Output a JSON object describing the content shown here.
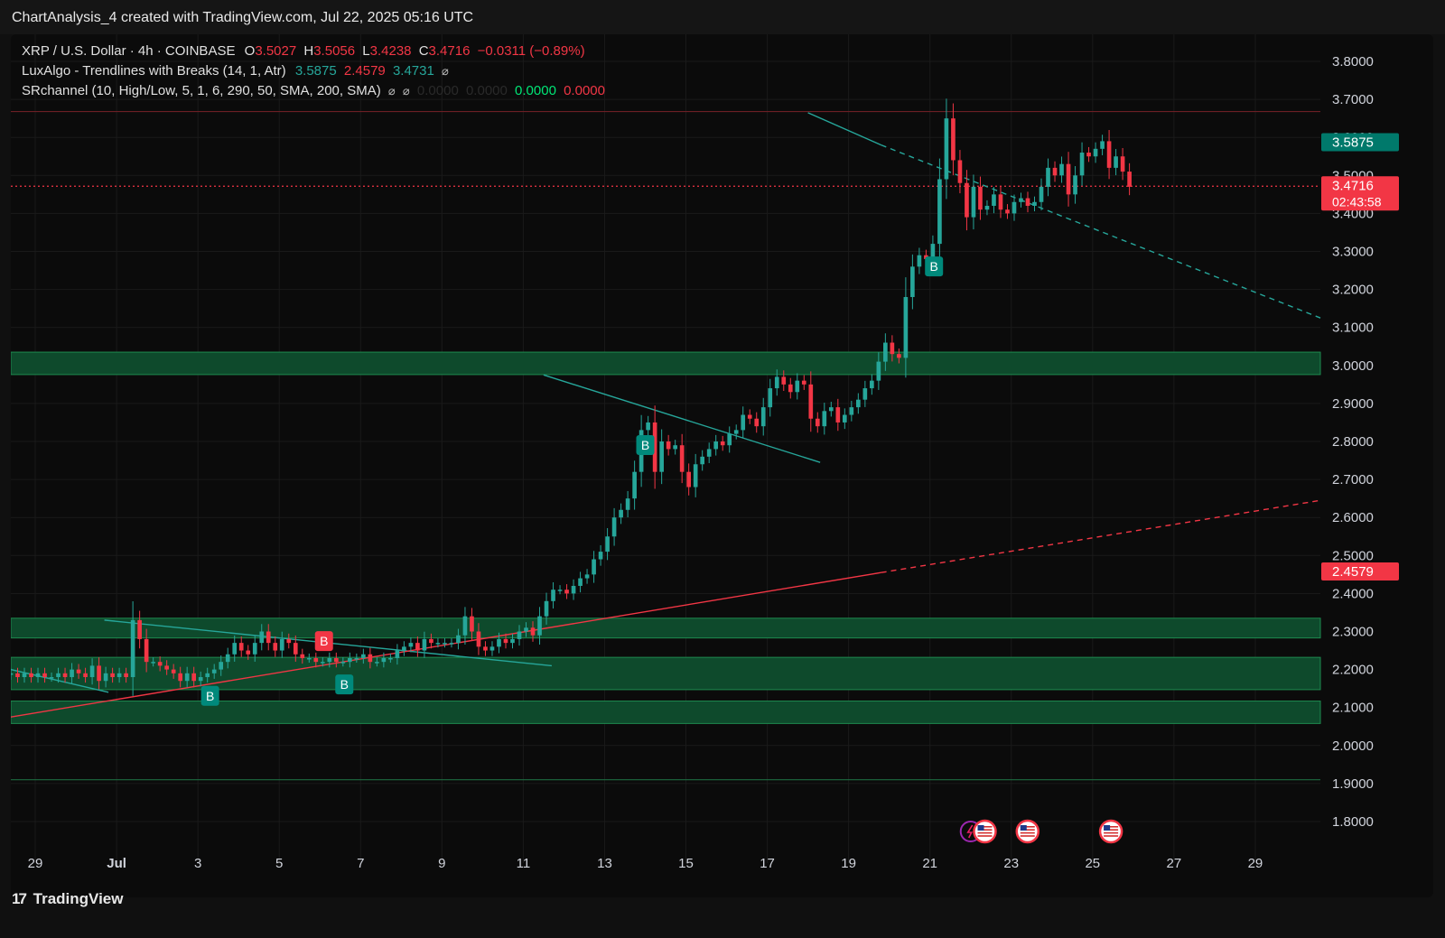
{
  "caption": "ChartAnalysis_4 created with TradingView.com, Jul 22, 2025 05:16 UTC",
  "legend": {
    "symbol": "XRP / U.S. Dollar · 4h · COINBASE",
    "o_label": "O",
    "o_value": "3.5027",
    "h_label": "H",
    "h_value": "3.5056",
    "l_label": "L",
    "l_value": "3.4238",
    "c_label": "C",
    "c_value": "3.4716",
    "change": "−0.0311 (−0.89%)",
    "lux_name": "LuxAlgo - Trendlines with Breaks (14, 1, Atr)",
    "lux_v1": "3.5875",
    "lux_v2": "2.4579",
    "lux_v3": "3.4731",
    "sr_name": "SRchannel (10, High/Low, 5, 1, 6, 290, 50, SMA, 200, SMA)",
    "sr_v1": "0.0000",
    "sr_v2": "0.0000",
    "sr_v3": "0.0000",
    "sr_v4": "0.0000",
    "na_icon": "null-set-icon"
  },
  "footer": {
    "brand": "TradingView"
  },
  "colors": {
    "up": "#26a69a",
    "down": "#f23645",
    "zone": "#0e4a2c",
    "zoneEdge": "#1e8a4f",
    "bg": "#0b0b0b"
  },
  "chart_data": {
    "type": "candlestick",
    "symbol": "XRP / U.S. Dollar",
    "timeframe": "4h",
    "ylim": [
      1.76,
      3.86
    ],
    "y_ticks": [
      "3.8000",
      "3.7000",
      "3.6000",
      "3.5000",
      "3.4000",
      "3.3000",
      "3.2000",
      "3.1000",
      "3.0000",
      "2.9000",
      "2.8000",
      "2.7000",
      "2.6000",
      "2.5000",
      "2.4000",
      "2.3000",
      "2.2000",
      "2.1000",
      "2.0000",
      "1.9000",
      "1.8000"
    ],
    "x_ticks": [
      {
        "label": "29",
        "day": -1
      },
      {
        "label": "Jul",
        "day": 1
      },
      {
        "label": "3",
        "day": 3
      },
      {
        "label": "5",
        "day": 5
      },
      {
        "label": "7",
        "day": 7
      },
      {
        "label": "9",
        "day": 9
      },
      {
        "label": "11",
        "day": 11
      },
      {
        "label": "13",
        "day": 13
      },
      {
        "label": "15",
        "day": 15
      },
      {
        "label": "17",
        "day": 17
      },
      {
        "label": "19",
        "day": 19
      },
      {
        "label": "21",
        "day": 21
      },
      {
        "label": "23",
        "day": 23
      },
      {
        "label": "25",
        "day": 25
      },
      {
        "label": "27",
        "day": 27
      },
      {
        "label": "29",
        "day": 29
      }
    ],
    "x_range_days": [
      -1.6,
      30.6
    ],
    "candles_day0": -1.6,
    "candle_step_days": 0.1667,
    "close": [
      2.19,
      2.18,
      2.19,
      2.18,
      2.19,
      2.18,
      2.18,
      2.19,
      2.18,
      2.2,
      2.19,
      2.18,
      2.21,
      2.17,
      2.19,
      2.18,
      2.19,
      2.18,
      2.33,
      2.28,
      2.22,
      2.22,
      2.21,
      2.2,
      2.19,
      2.17,
      2.19,
      2.17,
      2.18,
      2.19,
      2.2,
      2.22,
      2.24,
      2.27,
      2.25,
      2.24,
      2.27,
      2.3,
      2.27,
      2.25,
      2.28,
      2.27,
      2.24,
      2.23,
      2.23,
      2.22,
      2.22,
      2.23,
      2.22,
      2.22,
      2.23,
      2.23,
      2.24,
      2.22,
      2.22,
      2.23,
      2.23,
      2.25,
      2.26,
      2.27,
      2.25,
      2.28,
      2.27,
      2.27,
      2.27,
      2.27,
      2.29,
      2.34,
      2.3,
      2.26,
      2.25,
      2.26,
      2.28,
      2.27,
      2.28,
      2.3,
      2.31,
      2.29,
      2.34,
      2.38,
      2.41,
      2.41,
      2.4,
      2.42,
      2.44,
      2.45,
      2.49,
      2.51,
      2.55,
      2.6,
      2.62,
      2.65,
      2.72,
      2.83,
      2.85,
      2.72,
      2.8,
      2.78,
      2.79,
      2.72,
      2.68,
      2.74,
      2.76,
      2.78,
      2.8,
      2.79,
      2.82,
      2.83,
      2.87,
      2.86,
      2.84,
      2.89,
      2.94,
      2.97,
      2.95,
      2.93,
      2.96,
      2.95,
      2.86,
      2.84,
      2.88,
      2.89,
      2.85,
      2.87,
      2.89,
      2.91,
      2.94,
      2.96,
      3.01,
      3.06,
      3.03,
      3.02,
      3.18,
      3.26,
      3.29,
      3.28,
      3.32,
      3.49,
      3.65,
      3.54,
      3.48,
      3.39,
      3.47,
      3.41,
      3.42,
      3.45,
      3.41,
      3.4,
      3.43,
      3.44,
      3.42,
      3.43,
      3.47,
      3.52,
      3.5,
      3.53,
      3.45,
      3.5,
      3.56,
      3.55,
      3.57,
      3.59,
      3.52,
      3.55,
      3.51,
      3.47
    ],
    "break_signals": [
      {
        "label": "B",
        "day": 3.3,
        "type": "bull"
      },
      {
        "label": "B",
        "day": 6.1,
        "type": "bear"
      },
      {
        "label": "B",
        "day": 6.6,
        "type": "bull"
      },
      {
        "label": "B",
        "day": 14.0,
        "type": "bull"
      },
      {
        "label": "B",
        "day": 21.1,
        "type": "bull"
      }
    ],
    "sr_zones": [
      [
        2.976,
        3.035
      ],
      [
        2.283,
        2.335
      ],
      [
        2.147,
        2.232
      ],
      [
        2.058,
        2.117
      ]
    ],
    "horizontal_lines": [
      {
        "price": 3.668,
        "color": "#6b1f24",
        "style": "solid"
      },
      {
        "price": 1.91,
        "color": "#1e6b40",
        "style": "solid"
      },
      {
        "price": 3.4716,
        "color": "#f23645",
        "style": "dotted"
      }
    ],
    "trendlines": [
      {
        "from": [
          0.7,
          2.33
        ],
        "to": [
          11.7,
          2.21
        ],
        "color": "#26a69a",
        "dash": false
      },
      {
        "from": [
          -1.6,
          2.2
        ],
        "to": [
          0.8,
          2.14
        ],
        "color": "#26a69a",
        "dash": false
      },
      {
        "from": [
          11.5,
          2.975
        ],
        "to": [
          18.3,
          2.745
        ],
        "color": "#26a69a",
        "dash": false
      },
      {
        "from": [
          18.0,
          3.665
        ],
        "to": [
          19.8,
          3.58
        ],
        "color": "#26a69a",
        "dash": false
      },
      {
        "from": [
          19.8,
          3.58
        ],
        "to": [
          30.6,
          3.125
        ],
        "color": "#26a69a",
        "dash": true
      },
      {
        "from": [
          -1.6,
          2.075
        ],
        "to": [
          19.8,
          2.455
        ],
        "color": "#f23645",
        "dash": false
      },
      {
        "from": [
          19.8,
          2.455
        ],
        "to": [
          30.6,
          2.645
        ],
        "color": "#f23645",
        "dash": true
      }
    ],
    "price_labels": [
      {
        "text": "3.5875",
        "price": 3.5875,
        "color": "#00796b"
      },
      {
        "text": "3.4716",
        "price": 3.4716,
        "color": "#f23645",
        "sub": "02:43:58"
      },
      {
        "text": "2.4579",
        "price": 2.4579,
        "color": "#f23645"
      }
    ],
    "event_markers": [
      {
        "day": 22.0,
        "icon": "lightning-icon"
      },
      {
        "day": 22.35,
        "icon": "us-flag-icon"
      },
      {
        "day": 23.4,
        "icon": "us-flag-icon"
      },
      {
        "day": 25.45,
        "icon": "us-flag-icon"
      }
    ]
  }
}
